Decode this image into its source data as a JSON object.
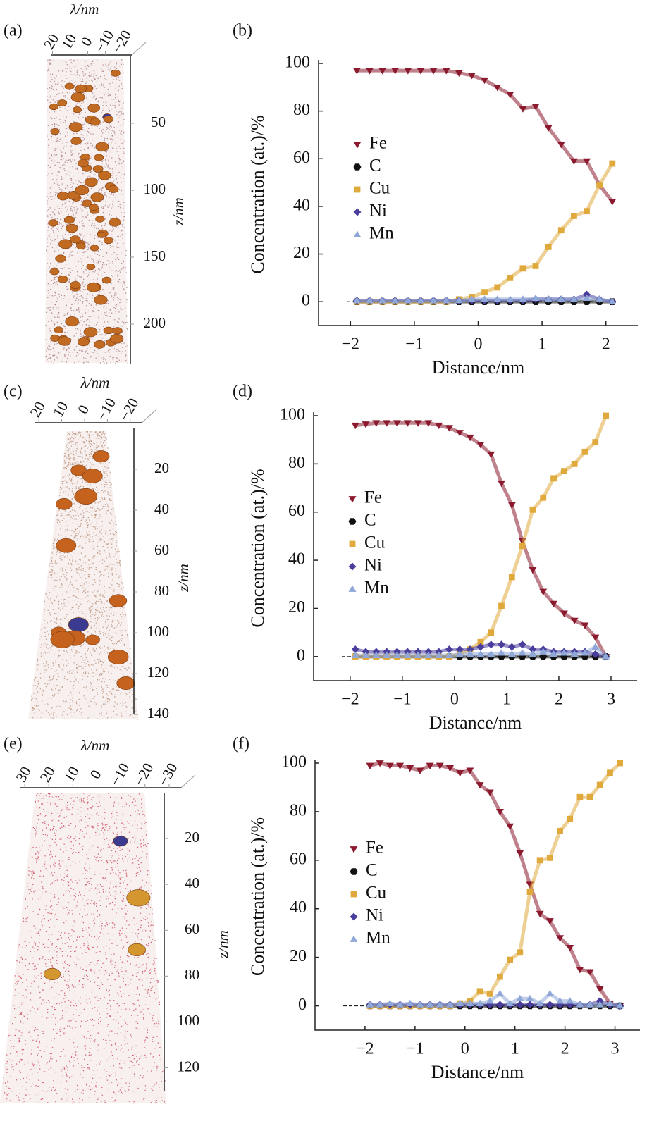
{
  "chart_data": [
    {
      "type": "atom-map",
      "panel_label": "(a)",
      "xlabel": "λ/nm",
      "ylabel": "z/nm",
      "xlim": [
        25,
        -25
      ],
      "xticks": [
        20,
        10,
        0,
        {
          "value": -10,
          "label": "−10"
        },
        {
          "value": -20,
          "label": "−20"
        }
      ],
      "ylim": [
        0,
        230
      ],
      "yticks": [
        50,
        100,
        150,
        200
      ]
    },
    {
      "type": "line",
      "panel_label": "(b)",
      "xlabel": "Distance/nm",
      "ylabel": "Concentration (at.)/%",
      "xlim": [
        -2.5,
        2.5
      ],
      "xticks": [
        {
          "value": -2,
          "label": "−2"
        },
        {
          "value": -1,
          "label": "−1"
        },
        0,
        1,
        2
      ],
      "ylim": [
        -10,
        100
      ],
      "yticks": [
        0,
        20,
        40,
        60,
        80,
        100
      ],
      "x": [
        -1.9,
        -1.7,
        -1.5,
        -1.3,
        -1.1,
        -0.9,
        -0.7,
        -0.5,
        -0.3,
        -0.1,
        0.1,
        0.3,
        0.5,
        0.7,
        0.9,
        1.1,
        1.3,
        1.5,
        1.7,
        1.9,
        2.1
      ],
      "series": [
        {
          "name": "Fe",
          "color": "#8b1a2e",
          "marker": "triangle-down",
          "values": [
            97,
            97,
            97,
            97,
            97,
            97,
            97,
            97,
            96,
            95,
            93,
            90,
            87,
            81,
            82,
            73,
            66,
            59,
            59,
            49,
            42
          ]
        },
        {
          "name": "C",
          "color": "#111111",
          "marker": "hexagon",
          "values": [
            0,
            0,
            0,
            0,
            0,
            0,
            0,
            0,
            0,
            0,
            0,
            0,
            0,
            0,
            0,
            0,
            0,
            0,
            0,
            0,
            0
          ]
        },
        {
          "name": "Cu",
          "color": "#e0a93c",
          "marker": "square",
          "values": [
            0,
            0,
            0,
            0,
            0,
            0,
            0,
            0,
            1,
            2,
            4,
            6,
            10,
            14,
            15,
            23,
            30,
            36,
            38,
            49,
            58
          ]
        },
        {
          "name": "Ni",
          "color": "#4a3e9c",
          "marker": "diamond",
          "values": [
            0.5,
            0.5,
            0.5,
            0.5,
            0.5,
            0.5,
            0.5,
            0.5,
            0.5,
            0.5,
            0.5,
            0.5,
            0.5,
            0.5,
            1,
            1,
            1,
            1,
            3,
            1,
            0
          ]
        },
        {
          "name": "Mn",
          "color": "#8fa8d8",
          "marker": "triangle-up",
          "values": [
            0.5,
            0.5,
            0.5,
            0.5,
            0.5,
            0.5,
            0.5,
            0.5,
            0.5,
            1,
            1,
            1,
            1,
            1,
            1.5,
            1,
            1,
            1,
            1.5,
            1,
            0
          ]
        }
      ]
    },
    {
      "type": "atom-map",
      "panel_label": "(c)",
      "xlabel": "λ/nm",
      "ylabel": "z/nm",
      "xlim": [
        25,
        -25
      ],
      "xticks": [
        20,
        10,
        0,
        {
          "value": -10,
          "label": "−10"
        },
        {
          "value": -20,
          "label": "−20"
        }
      ],
      "ylim": [
        0,
        140
      ],
      "yticks": [
        20,
        40,
        60,
        80,
        100,
        120,
        140
      ]
    },
    {
      "type": "line",
      "panel_label": "(d)",
      "xlabel": "Distance/nm",
      "ylabel": "Concentration (at.)/%",
      "xlim": [
        -2.7,
        3.5
      ],
      "xticks": [
        {
          "value": -2,
          "label": "−2"
        },
        {
          "value": -1,
          "label": "−1"
        },
        0,
        1,
        2,
        3
      ],
      "ylim": [
        -10,
        100
      ],
      "yticks": [
        0,
        20,
        40,
        60,
        80,
        100
      ],
      "x": [
        -1.9,
        -1.7,
        -1.5,
        -1.3,
        -1.1,
        -0.9,
        -0.7,
        -0.5,
        -0.3,
        -0.1,
        0.1,
        0.3,
        0.5,
        0.7,
        0.9,
        1.1,
        1.3,
        1.5,
        1.7,
        1.9,
        2.1,
        2.3,
        2.5,
        2.7,
        2.9
      ],
      "series": [
        {
          "name": "Fe",
          "color": "#8b1a2e",
          "marker": "triangle-down",
          "values": [
            96,
            96.5,
            97,
            97,
            97,
            97,
            97,
            97,
            96,
            95,
            93,
            91,
            88,
            84,
            72,
            63,
            48,
            36,
            27,
            22,
            18,
            15,
            13,
            8,
            0
          ]
        },
        {
          "name": "C",
          "color": "#111111",
          "marker": "hexagon",
          "values": [
            0,
            0,
            0,
            0,
            0,
            0,
            0,
            0,
            0,
            0,
            0,
            0,
            0,
            0,
            0,
            0,
            0,
            0,
            0,
            0,
            0,
            0,
            0,
            0,
            0
          ]
        },
        {
          "name": "Cu",
          "color": "#e0a93c",
          "marker": "square",
          "values": [
            0,
            0,
            0,
            0,
            0,
            0,
            0,
            0,
            0,
            0,
            1,
            3,
            6,
            10,
            21,
            33,
            46,
            61,
            66,
            74,
            77,
            80,
            85,
            89,
            100
          ]
        },
        {
          "name": "Ni",
          "color": "#4a3e9c",
          "marker": "diamond",
          "values": [
            3,
            2,
            2,
            2,
            2,
            2,
            2,
            2,
            2,
            3,
            3,
            3,
            4,
            5,
            5,
            4,
            5,
            3,
            3,
            2,
            2,
            2,
            2,
            1,
            0
          ]
        },
        {
          "name": "Mn",
          "color": "#8fa8d8",
          "marker": "triangle-up",
          "values": [
            0.5,
            0.5,
            0.5,
            0.5,
            0.5,
            0.5,
            0.5,
            0.5,
            0.5,
            0.5,
            1,
            1,
            1,
            1,
            1.5,
            1,
            1.5,
            1,
            2,
            1,
            1.5,
            1,
            1.5,
            4,
            0
          ]
        }
      ]
    },
    {
      "type": "atom-map",
      "panel_label": "(e)",
      "xlabel": "λ/nm",
      "ylabel": "z/nm",
      "xlim": [
        35,
        -35
      ],
      "xticks": [
        30,
        20,
        10,
        0,
        {
          "value": -10,
          "label": "−10"
        },
        {
          "value": -20,
          "label": "−20"
        },
        {
          "value": -30,
          "label": "−30"
        }
      ],
      "ylim": [
        0,
        130
      ],
      "yticks": [
        20,
        40,
        60,
        80,
        100,
        120
      ]
    },
    {
      "type": "line",
      "panel_label": "(f)",
      "xlabel": "Distance/nm",
      "ylabel": "Concentration (at.)/%",
      "xlim": [
        -3,
        3.5
      ],
      "xticks": [
        {
          "value": -2,
          "label": "−2"
        },
        {
          "value": -1,
          "label": "−1"
        },
        0,
        1,
        2,
        3
      ],
      "ylim": [
        -10,
        100
      ],
      "yticks": [
        0,
        20,
        40,
        60,
        80,
        100
      ],
      "x": [
        -1.9,
        -1.7,
        -1.5,
        -1.3,
        -1.1,
        -0.9,
        -0.7,
        -0.5,
        -0.3,
        -0.1,
        0.1,
        0.3,
        0.5,
        0.7,
        0.9,
        1.1,
        1.3,
        1.5,
        1.7,
        1.9,
        2.1,
        2.3,
        2.5,
        2.7,
        2.9,
        3.1
      ],
      "series": [
        {
          "name": "Fe",
          "color": "#8b1a2e",
          "marker": "triangle-down",
          "values": [
            99,
            100,
            99,
            99,
            98,
            97,
            99,
            99,
            98,
            96,
            97,
            91,
            88,
            80,
            74,
            63,
            50,
            38,
            35,
            28,
            24,
            15,
            14,
            7,
            1,
            0
          ]
        },
        {
          "name": "C",
          "color": "#111111",
          "marker": "hexagon",
          "values": [
            0,
            0,
            0,
            0,
            0,
            0,
            0,
            0,
            0,
            0,
            0,
            0,
            0,
            0,
            0,
            0,
            0,
            0,
            0,
            0,
            0,
            0,
            0,
            0,
            0,
            0
          ]
        },
        {
          "name": "Cu",
          "color": "#e0a93c",
          "marker": "square",
          "values": [
            0,
            0,
            0,
            0,
            0,
            0,
            0,
            0,
            0,
            1,
            2,
            6,
            5,
            12,
            19,
            22,
            47,
            60,
            61,
            72,
            77,
            86,
            86,
            91,
            96,
            100
          ]
        },
        {
          "name": "Ni",
          "color": "#4a3e9c",
          "marker": "diamond",
          "values": [
            0.5,
            0.5,
            0.5,
            0.5,
            0.5,
            0.5,
            0.5,
            0.5,
            0.5,
            0.5,
            0.5,
            0.5,
            0.5,
            0.5,
            0.5,
            0.5,
            0.5,
            0.5,
            0.5,
            0.5,
            0.5,
            0.5,
            0.5,
            2,
            0.5,
            0
          ]
        },
        {
          "name": "Mn",
          "color": "#8fa8d8",
          "marker": "triangle-up",
          "values": [
            0.5,
            0.5,
            1,
            0.5,
            1,
            0.5,
            0.5,
            0.5,
            0.5,
            1,
            1,
            1,
            2,
            5,
            1,
            3,
            3,
            1,
            5,
            2,
            2,
            0.5,
            0.5,
            0.5,
            1,
            0
          ]
        }
      ]
    }
  ]
}
